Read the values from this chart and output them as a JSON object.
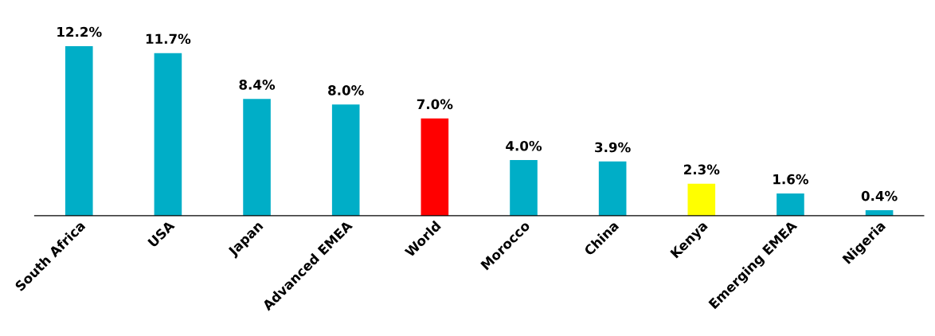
{
  "chart_data": {
    "type": "bar",
    "categories": [
      "South Africa",
      "USA",
      "Japan",
      "Advanced EMEA",
      "World",
      "Morocco",
      "China",
      "Kenya",
      "Emerging EMEA",
      "Nigeria"
    ],
    "values": [
      12.2,
      11.7,
      8.4,
      8.0,
      7.0,
      4.0,
      3.9,
      2.3,
      1.6,
      0.4
    ],
    "colors": [
      "#00aec7",
      "#00aec7",
      "#00aec7",
      "#00aec7",
      "#ff0000",
      "#00aec7",
      "#00aec7",
      "#ffff00",
      "#00aec7",
      "#00aec7"
    ],
    "value_labels": [
      "12.2%",
      "11.7%",
      "8.4%",
      "8.0%",
      "7.0%",
      "4.0%",
      "3.9%",
      "2.3%",
      "1.6%",
      "0.4%"
    ],
    "grid": false,
    "legend": false,
    "tick_labels": "x"
  }
}
